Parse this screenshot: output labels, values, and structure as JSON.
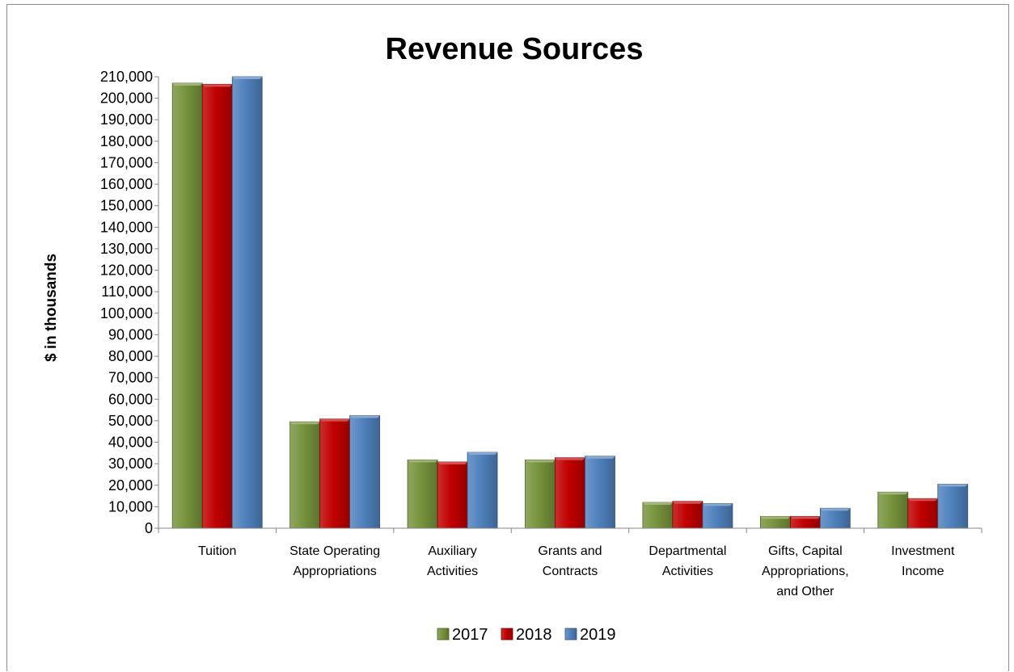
{
  "chart_data": {
    "type": "bar",
    "title": "Revenue Sources",
    "xlabel": "",
    "ylabel": "$ in thousands",
    "ylim": [
      0,
      210000
    ],
    "ytick_step": 10000,
    "yticks": [
      "0",
      "10,000",
      "20,000",
      "30,000",
      "40,000",
      "50,000",
      "60,000",
      "70,000",
      "80,000",
      "90,000",
      "100,000",
      "110,000",
      "120,000",
      "130,000",
      "140,000",
      "150,000",
      "160,000",
      "170,000",
      "180,000",
      "190,000",
      "200,000",
      "210,000"
    ],
    "categories": [
      [
        "Tuition"
      ],
      [
        "State Operating",
        "Appropriations"
      ],
      [
        "Auxiliary",
        "Activities"
      ],
      [
        "Grants and",
        "Contracts"
      ],
      [
        "Departmental",
        "Activities"
      ],
      [
        "Gifts, Capital",
        "Appropriations,",
        "and Other"
      ],
      [
        "Investment",
        "Income"
      ]
    ],
    "series": [
      {
        "name": "2017",
        "color": "#77933c",
        "values": [
          207000,
          49500,
          31800,
          31800,
          12000,
          5500,
          16800
        ]
      },
      {
        "name": "2018",
        "color": "#c00000",
        "values": [
          206500,
          50800,
          30800,
          32800,
          12500,
          5500,
          13800
        ]
      },
      {
        "name": "2019",
        "color": "#4f81bd",
        "values": [
          210000,
          52400,
          35300,
          33500,
          11500,
          9300,
          20500
        ]
      }
    ],
    "grid": false,
    "legend_position": "bottom"
  }
}
